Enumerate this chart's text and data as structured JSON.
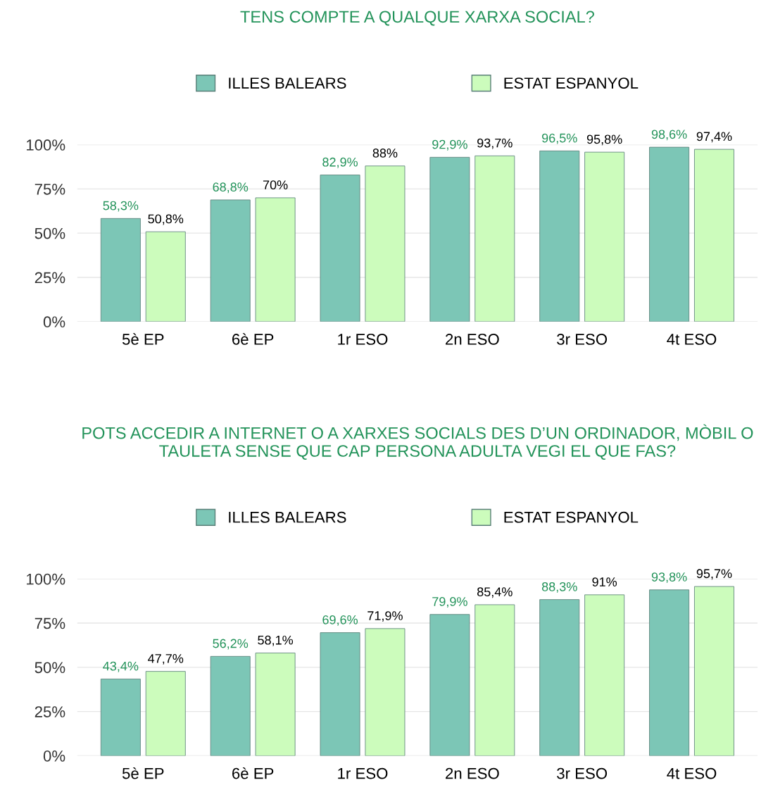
{
  "chart_data": [
    {
      "type": "bar",
      "title": "TENS COMPTE A QUALQUE XARXA SOCIAL?",
      "categories": [
        "5è EP",
        "6è EP",
        "1r ESO",
        "2n ESO",
        "3r ESO",
        "4t ESO"
      ],
      "series": [
        {
          "name": "ILLES BALEARS",
          "color": "#7cc6b6",
          "values": [
            58.3,
            68.8,
            82.9,
            92.9,
            96.5,
            98.6
          ],
          "value_labels": [
            "58,3%",
            "68,8%",
            "82,9%",
            "92,9%",
            "96,5%",
            "98,6%"
          ]
        },
        {
          "name": "ESTAT ESPANYOL",
          "color": "#ccfcbc",
          "values": [
            50.8,
            70,
            88,
            93.7,
            95.8,
            97.4
          ],
          "value_labels": [
            "50,8%",
            "70%",
            "88%",
            "93,7%",
            "95,8%",
            "97,4%"
          ]
        }
      ],
      "ylim": [
        0,
        100
      ],
      "yticks": [
        {
          "value": 0,
          "label": "0%"
        },
        {
          "value": 25,
          "label": "25%"
        },
        {
          "value": 50,
          "label": "50%"
        },
        {
          "value": 75,
          "label": "75%"
        },
        {
          "value": 100,
          "label": "100%"
        }
      ],
      "grid": "y",
      "legend": "top"
    },
    {
      "type": "bar",
      "title": "POTS ACCEDIR A INTERNET O A XARXES SOCIALS DES D’UN ORDINADOR, MÒBIL O\nTAULETA SENSE QUE CAP PERSONA ADULTA VEGI EL QUE FAS?",
      "categories": [
        "5è EP",
        "6è EP",
        "1r ESO",
        "2n ESO",
        "3r ESO",
        "4t ESO"
      ],
      "series": [
        {
          "name": "ILLES BALEARS",
          "color": "#7cc6b6",
          "values": [
            43.4,
            56.2,
            69.6,
            79.9,
            88.3,
            93.8
          ],
          "value_labels": [
            "43,4%",
            "56,2%",
            "69,6%",
            "79,9%",
            "88,3%",
            "93,8%"
          ]
        },
        {
          "name": "ESTAT ESPANYOL",
          "color": "#ccfcbc",
          "values": [
            47.7,
            58.1,
            71.9,
            85.4,
            91,
            95.7
          ],
          "value_labels": [
            "47,7%",
            "58,1%",
            "71,9%",
            "85,4%",
            "91%",
            "95,7%"
          ]
        }
      ],
      "ylim": [
        0,
        100
      ],
      "yticks": [
        {
          "value": 0,
          "label": "0%"
        },
        {
          "value": 25,
          "label": "25%"
        },
        {
          "value": 50,
          "label": "50%"
        },
        {
          "value": 75,
          "label": "75%"
        },
        {
          "value": 100,
          "label": "100%"
        }
      ],
      "grid": "y",
      "legend": "top"
    }
  ]
}
